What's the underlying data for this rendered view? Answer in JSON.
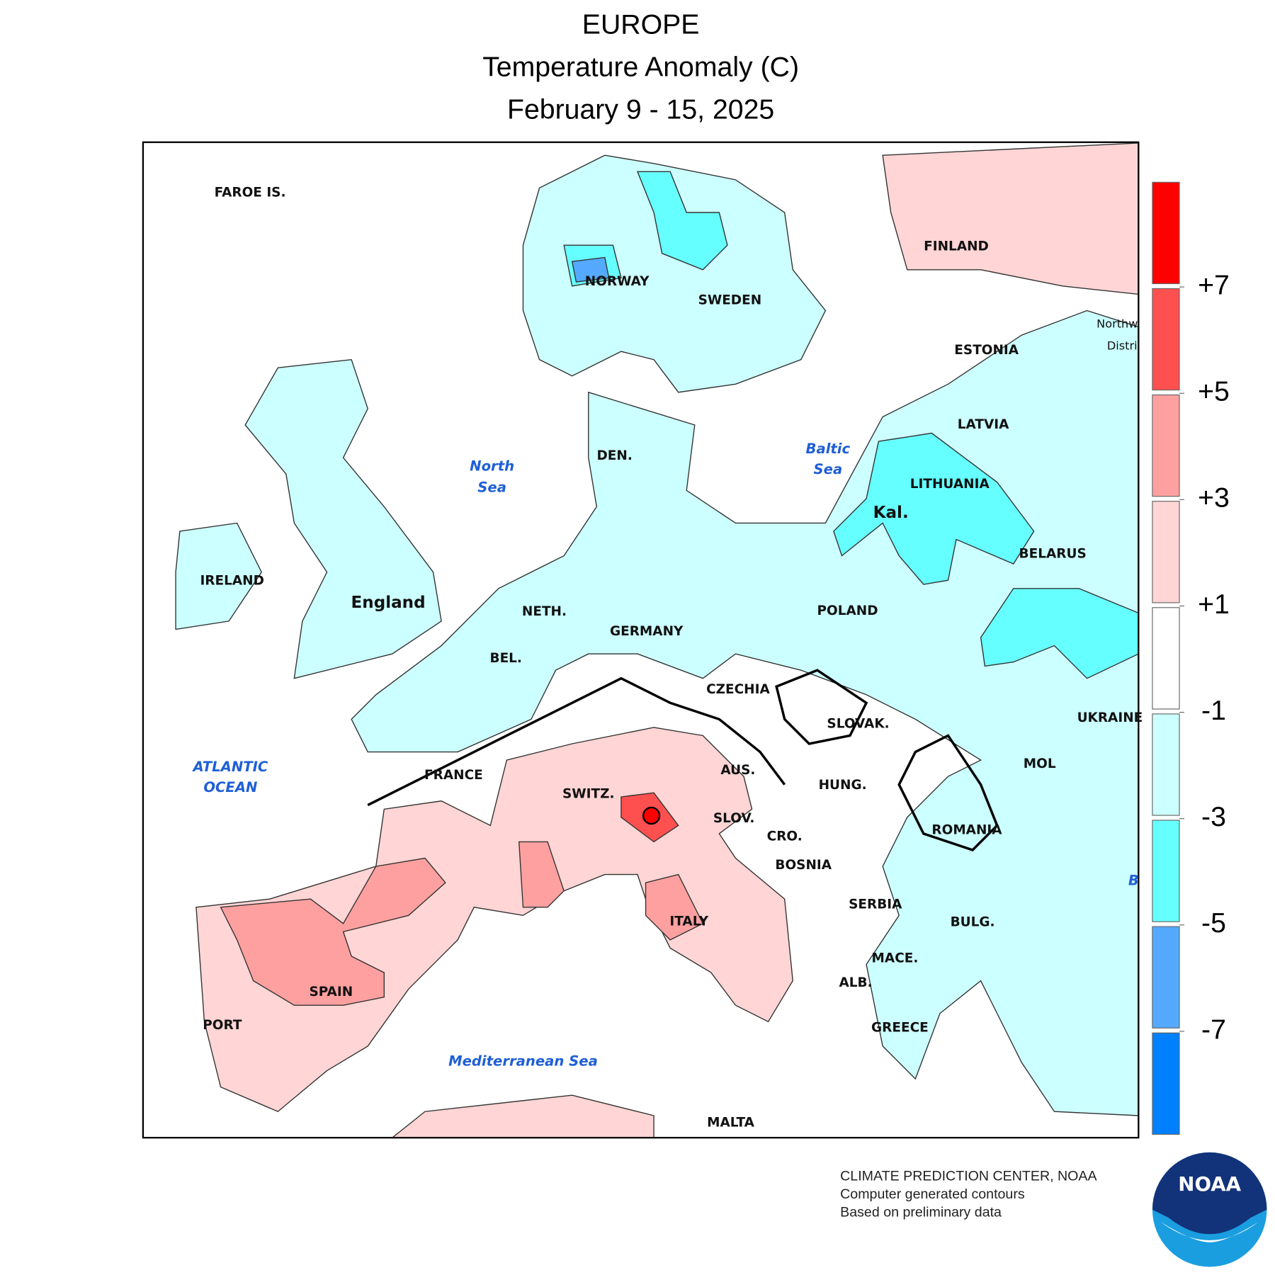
{
  "header": {
    "title": "EUROPE",
    "subtitle": "Temperature Anomaly (C)",
    "period": "February 9 - 15, 2025"
  },
  "map": {
    "labels": [
      "FAROE IS.",
      "NORWAY",
      "SWEDEN",
      "FINLAND",
      "ESTONIA",
      "LATVIA",
      "LITHUANIA",
      "Kal.",
      "BELARUS",
      "POLAND",
      "UKRAINE",
      "IRELAND",
      "England",
      "NETH.",
      "GERMANY",
      "BEL.",
      "DEN.",
      "CZECHIA",
      "SLOVAK.",
      "FRANCE",
      "SWITZ.",
      "AUS.",
      "HUNG.",
      "MOL",
      "ROMANIA",
      "SLOV.",
      "CRO.",
      "BOSNIA",
      "SERBIA",
      "ITALY",
      "BULG.",
      "MACE.",
      "ALB.",
      "SPAIN",
      "PORT",
      "GREECE",
      "MALTA",
      "Northw",
      "Distri"
    ],
    "seas": [
      "North",
      "Sea",
      "Baltic",
      "Sea",
      "ATLANTIC",
      "OCEAN",
      "Mediterranean Sea",
      "B"
    ]
  },
  "legend": {
    "colors": [
      "#ff0000",
      "#ff5050",
      "#ffa0a0",
      "#ffd5d5",
      "#ffffff",
      "#ccffff",
      "#66ffff",
      "#55aaff",
      "#0080ff"
    ],
    "ticks": [
      {
        "value": 7,
        "label": "+7"
      },
      {
        "value": 5,
        "label": "+5"
      },
      {
        "value": 3,
        "label": "+3"
      },
      {
        "value": 1,
        "label": "+1"
      },
      -1,
      -3,
      -5,
      -7
    ]
  },
  "footer": {
    "credits": [
      "CLIMATE PREDICTION CENTER, NOAA",
      "Computer generated contours",
      "Based on preliminary data"
    ],
    "logo": "NOAA"
  }
}
